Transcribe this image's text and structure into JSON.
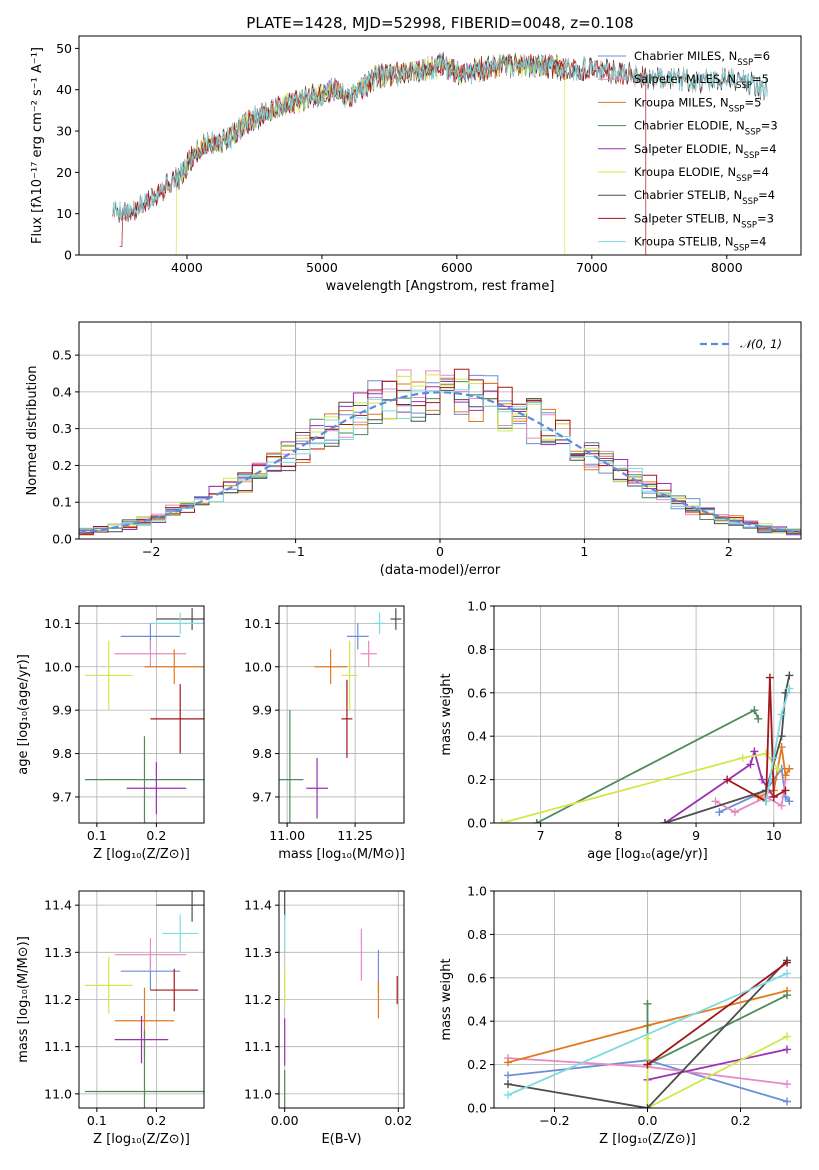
{
  "colors": {
    "Chabrier MILES": "#6a8fd8",
    "Salpeter MILES": "#e78ac3",
    "Kroupa MILES": "#e07a1f",
    "Chabrier ELODIE": "#4f8a5b",
    "Salpeter ELODIE": "#9b30b5",
    "Kroupa ELODIE": "#d2e84a",
    "Chabrier STELIB": "#4d4d4d",
    "Salpeter STELIB": "#a3161b",
    "Kroupa STELIB": "#7fdbe0"
  },
  "chart_data": [
    {
      "id": "spectrum",
      "type": "line",
      "title": "PLATE=1428, MJD=52998, FIBERID=0048, z=0.108",
      "xlabel": "wavelength [Angstrom, rest frame]",
      "ylabel": "Flux [fλ10⁻¹⁷ erg cm⁻² s⁻¹ A⁻¹]",
      "xlim": [
        3200,
        8550
      ],
      "ylim": [
        0,
        53
      ],
      "xticks": [
        4000,
        5000,
        6000,
        7000,
        8000
      ],
      "yticks": [
        0,
        10,
        20,
        30,
        40,
        50
      ],
      "grid": false,
      "legend_position": "top-right",
      "continuum_x": [
        3450,
        3600,
        3700,
        3850,
        3950,
        4050,
        4150,
        4300,
        4400,
        4500,
        4700,
        4900,
        5100,
        5200,
        5400,
        5600,
        5800,
        5900,
        6000,
        6200,
        6400,
        6600,
        6800,
        7000,
        7200,
        7400,
        7600,
        7800,
        8000,
        8150,
        8300
      ],
      "continuum_y": [
        11,
        10,
        13,
        17,
        19,
        24,
        27,
        28,
        31,
        33,
        36,
        38,
        40,
        38,
        43,
        44,
        45,
        46,
        44,
        45,
        46,
        46,
        45,
        45,
        44,
        43,
        43,
        42,
        43,
        42,
        40
      ],
      "series": [
        {
          "name": "Chabrier MILES",
          "nssp": "6",
          "x_range": [
            3450,
            8300
          ]
        },
        {
          "name": "Salpeter MILES",
          "nssp": "5",
          "x_range": [
            3450,
            8300
          ]
        },
        {
          "name": "Kroupa MILES",
          "nssp": "5",
          "x_range": [
            3450,
            8300
          ]
        },
        {
          "name": "Chabrier ELODIE",
          "nssp": "3",
          "x_range": [
            3920,
            6800
          ]
        },
        {
          "name": "Salpeter ELODIE",
          "nssp": "4",
          "x_range": [
            3920,
            6800
          ]
        },
        {
          "name": "Kroupa ELODIE",
          "nssp": "4",
          "x_range": [
            3920,
            6800
          ]
        },
        {
          "name": "Chabrier STELIB",
          "nssp": "4",
          "x_range": [
            3450,
            8300
          ]
        },
        {
          "name": "Salpeter STELIB",
          "nssp": "3",
          "x_range": [
            3500,
            7400
          ]
        },
        {
          "name": "Kroupa STELIB",
          "nssp": "4",
          "x_range": [
            3450,
            8300
          ]
        }
      ]
    },
    {
      "id": "residuals",
      "type": "histogram",
      "xlabel": "(data-model)/error",
      "ylabel": "Normed distribution",
      "xlim": [
        -2.5,
        2.5
      ],
      "ylim": [
        0,
        0.59
      ],
      "xticks": [
        -2,
        -1,
        0,
        1,
        2
      ],
      "yticks": [
        0.0,
        0.1,
        0.2,
        0.3,
        0.4,
        0.5
      ],
      "grid": true,
      "legend_position": "top-right",
      "reference_label": "𝒩(0, 1)",
      "reference_mean": 0,
      "reference_sigma": 1,
      "bin_width": 0.1
    },
    {
      "id": "age-vs-Z",
      "type": "errorbar",
      "xlabel": "Z [log₁₀(Z/Z⊙)]",
      "ylabel": "age  [log₁₀(age/yr)]",
      "xlim": [
        0.07,
        0.28
      ],
      "ylim": [
        9.64,
        10.14
      ],
      "xticks": [
        0.1,
        0.2
      ],
      "yticks": [
        9.7,
        9.8,
        9.9,
        10.0,
        10.1
      ],
      "grid": true,
      "points": [
        {
          "series": "Chabrier MILES",
          "x": 0.19,
          "y": 10.07,
          "xerr": 0.05,
          "yerr": 0.03
        },
        {
          "series": "Salpeter MILES",
          "x": 0.19,
          "y": 10.03,
          "xerr": 0.06,
          "yerr": 0.03
        },
        {
          "series": "Kroupa MILES",
          "x": 0.23,
          "y": 10.0,
          "xerr": 0.05,
          "yerr": 0.04
        },
        {
          "series": "Chabrier ELODIE",
          "x": 0.18,
          "y": 9.74,
          "xerr": 0.1,
          "yerr": 0.1
        },
        {
          "series": "Salpeter ELODIE",
          "x": 0.2,
          "y": 9.72,
          "xerr": 0.05,
          "yerr": 0.06
        },
        {
          "series": "Kroupa ELODIE",
          "x": 0.12,
          "y": 9.98,
          "xerr": 0.04,
          "yerr": 0.08
        },
        {
          "series": "Chabrier STELIB",
          "x": 0.26,
          "y": 10.11,
          "xerr": 0.06,
          "yerr": 0.025
        },
        {
          "series": "Salpeter STELIB",
          "x": 0.24,
          "y": 9.88,
          "xerr": 0.05,
          "yerr": 0.08
        },
        {
          "series": "Kroupa STELIB",
          "x": 0.24,
          "y": 10.1,
          "xerr": 0.05,
          "yerr": 0.025
        }
      ]
    },
    {
      "id": "age-vs-mass",
      "type": "errorbar",
      "xlabel": "mass [log₁₀(M/M⊙)]",
      "ylabel": "",
      "xlim": [
        10.97,
        11.43
      ],
      "ylim": [
        9.64,
        10.14
      ],
      "xticks": [
        11.0,
        11.25
      ],
      "yticks": [
        9.7,
        9.8,
        9.9,
        10.0,
        10.1
      ],
      "grid": true,
      "points": [
        {
          "series": "Chabrier MILES",
          "x": 11.26,
          "y": 10.07,
          "xerr": 0.04,
          "yerr": 0.03
        },
        {
          "series": "Salpeter MILES",
          "x": 11.3,
          "y": 10.03,
          "xerr": 0.03,
          "yerr": 0.03
        },
        {
          "series": "Kroupa MILES",
          "x": 11.16,
          "y": 10.0,
          "xerr": 0.06,
          "yerr": 0.04
        },
        {
          "series": "Chabrier ELODIE",
          "x": 11.01,
          "y": 9.74,
          "xerr": 0.05,
          "yerr": 0.16
        },
        {
          "series": "Salpeter ELODIE",
          "x": 11.11,
          "y": 9.72,
          "xerr": 0.04,
          "yerr": 0.07
        },
        {
          "series": "Kroupa ELODIE",
          "x": 11.23,
          "y": 9.98,
          "xerr": 0.03,
          "yerr": 0.08
        },
        {
          "series": "Chabrier STELIB",
          "x": 11.4,
          "y": 10.11,
          "xerr": 0.02,
          "yerr": 0.025
        },
        {
          "series": "Salpeter STELIB",
          "x": 11.22,
          "y": 9.88,
          "xerr": 0.02,
          "yerr": 0.09
        },
        {
          "series": "Kroupa STELIB",
          "x": 11.34,
          "y": 10.1,
          "xerr": 0.02,
          "yerr": 0.025
        }
      ]
    },
    {
      "id": "weight-vs-age",
      "type": "line",
      "xlabel": "age  [log₁₀(age/yr)]",
      "ylabel": "mass weight",
      "xlim": [
        6.4,
        10.35
      ],
      "ylim": [
        0,
        1.0
      ],
      "xticks": [
        7,
        8,
        9,
        10
      ],
      "yticks": [
        0.0,
        0.2,
        0.4,
        0.6,
        0.8,
        1.0
      ],
      "grid": true,
      "series": [
        {
          "name": "Chabrier MILES",
          "x": [
            9.3,
            9.9,
            10.0,
            10.1,
            10.15,
            10.2
          ],
          "y": [
            0.05,
            0.15,
            0.2,
            0.25,
            0.12,
            0.1
          ]
        },
        {
          "name": "Salpeter MILES",
          "x": [
            9.25,
            9.5,
            9.9,
            10.1,
            10.15
          ],
          "y": [
            0.1,
            0.05,
            0.12,
            0.08,
            0.2
          ]
        },
        {
          "name": "Kroupa MILES",
          "x": [
            9.8,
            10.0,
            10.1,
            10.15,
            10.2
          ],
          "y": [
            0.12,
            0.15,
            0.35,
            0.22,
            0.25
          ]
        },
        {
          "name": "Chabrier ELODIE",
          "x": [
            6.95,
            9.75,
            9.8
          ],
          "y": [
            0.0,
            0.52,
            0.48
          ]
        },
        {
          "name": "Salpeter ELODIE",
          "x": [
            8.6,
            9.7,
            9.75,
            9.85,
            10.0
          ],
          "y": [
            0.0,
            0.27,
            0.33,
            0.2,
            0.12
          ]
        },
        {
          "name": "Kroupa ELODIE",
          "x": [
            6.5,
            9.6,
            9.9,
            10.05
          ],
          "y": [
            0.0,
            0.3,
            0.32,
            0.25
          ]
        },
        {
          "name": "Chabrier STELIB",
          "x": [
            8.6,
            9.9,
            10.1,
            10.15,
            10.2
          ],
          "y": [
            0.0,
            0.15,
            0.4,
            0.6,
            0.68
          ]
        },
        {
          "name": "Salpeter STELIB",
          "x": [
            9.4,
            9.9,
            9.95,
            10.0,
            10.15
          ],
          "y": [
            0.2,
            0.1,
            0.67,
            0.12,
            0.15
          ]
        },
        {
          "name": "Kroupa STELIB",
          "x": [
            9.9,
            10.0,
            10.1,
            10.2
          ],
          "y": [
            0.1,
            0.3,
            0.5,
            0.62
          ]
        }
      ]
    },
    {
      "id": "mass-vs-Z",
      "type": "errorbar",
      "xlabel": "Z [log₁₀(Z/Z⊙)]",
      "ylabel": "mass [log₁₀(M/M⊙)]",
      "xlim": [
        0.07,
        0.28
      ],
      "ylim": [
        10.97,
        11.43
      ],
      "xticks": [
        0.1,
        0.2
      ],
      "yticks": [
        11.0,
        11.1,
        11.2,
        11.3,
        11.4
      ],
      "grid": true,
      "points": [
        {
          "series": "Chabrier MILES",
          "x": 0.19,
          "y": 11.26,
          "xerr": 0.05,
          "yerr": 0.04
        },
        {
          "series": "Salpeter MILES",
          "x": 0.19,
          "y": 11.295,
          "xerr": 0.06,
          "yerr": 0.035
        },
        {
          "series": "Kroupa MILES",
          "x": 0.18,
          "y": 11.155,
          "xerr": 0.05,
          "yerr": 0.07
        },
        {
          "series": "Chabrier ELODIE",
          "x": 0.18,
          "y": 11.005,
          "xerr": 0.1,
          "yerr": 0.13
        },
        {
          "series": "Salpeter ELODIE",
          "x": 0.175,
          "y": 11.115,
          "xerr": 0.045,
          "yerr": 0.05
        },
        {
          "series": "Kroupa ELODIE",
          "x": 0.12,
          "y": 11.23,
          "xerr": 0.04,
          "yerr": 0.06
        },
        {
          "series": "Chabrier STELIB",
          "x": 0.26,
          "y": 11.4,
          "xerr": 0.06,
          "yerr": 0.035
        },
        {
          "series": "Salpeter STELIB",
          "x": 0.23,
          "y": 11.22,
          "xerr": 0.04,
          "yerr": 0.045
        },
        {
          "series": "Kroupa STELIB",
          "x": 0.24,
          "y": 11.34,
          "xerr": 0.03,
          "yerr": 0.04
        }
      ]
    },
    {
      "id": "mass-vs-EBV",
      "type": "errorbar",
      "xlabel": "E(B-V)",
      "ylabel": "",
      "xlim": [
        -0.001,
        0.021
      ],
      "ylim": [
        10.97,
        11.43
      ],
      "xticks": [
        0.0,
        0.02
      ],
      "yticks": [
        11.0,
        11.1,
        11.2,
        11.3,
        11.4
      ],
      "grid": true,
      "points": [
        {
          "series": "Chabrier MILES",
          "x": 0.0165,
          "y": 11.26,
          "xerr": 0,
          "yerr": 0.045
        },
        {
          "series": "Salpeter MILES",
          "x": 0.0135,
          "y": 11.295,
          "xerr": 0,
          "yerr": 0.055
        },
        {
          "series": "Kroupa MILES",
          "x": 0.0165,
          "y": 11.2,
          "xerr": 0,
          "yerr": 0.04
        },
        {
          "series": "Chabrier ELODIE",
          "x": 0.0,
          "y": 11.0,
          "xerr": 0,
          "yerr": 0.05
        },
        {
          "series": "Salpeter ELODIE",
          "x": 0.0,
          "y": 11.11,
          "xerr": 0,
          "yerr": 0.05
        },
        {
          "series": "Kroupa ELODIE",
          "x": 0.0,
          "y": 11.23,
          "xerr": 0,
          "yerr": 0.04
        },
        {
          "series": "Chabrier STELIB",
          "x": 0.0,
          "y": 11.4,
          "xerr": 0,
          "yerr": 0.03
        },
        {
          "series": "Salpeter STELIB",
          "x": 0.0198,
          "y": 11.22,
          "xerr": 0,
          "yerr": 0.03
        },
        {
          "series": "Kroupa STELIB",
          "x": 0.0,
          "y": 11.34,
          "xerr": 0,
          "yerr": 0.04
        }
      ]
    },
    {
      "id": "weight-vs-Z",
      "type": "line",
      "xlabel": "Z [log₁₀(Z/Z⊙)]",
      "ylabel": "mass weight",
      "xlim": [
        -0.33,
        0.33
      ],
      "ylim": [
        0,
        1.0
      ],
      "xticks": [
        -0.2,
        0.0,
        0.2
      ],
      "yticks": [
        0.0,
        0.2,
        0.4,
        0.6,
        0.8,
        1.0
      ],
      "grid": true,
      "series": [
        {
          "name": "Chabrier MILES",
          "x": [
            -0.3,
            0.0,
            0.3
          ],
          "y": [
            0.15,
            0.22,
            0.03
          ]
        },
        {
          "name": "Salpeter MILES",
          "x": [
            -0.3,
            0.0,
            0.3
          ],
          "y": [
            0.23,
            0.19,
            0.11
          ]
        },
        {
          "name": "Kroupa MILES",
          "x": [
            -0.3,
            0.0,
            0.3
          ],
          "y": [
            0.21,
            0.38,
            0.54
          ]
        },
        {
          "name": "Chabrier ELODIE",
          "x": [
            0.0,
            0.0,
            0.3
          ],
          "y": [
            0.48,
            0.2,
            0.52
          ]
        },
        {
          "name": "Salpeter ELODIE",
          "x": [
            0.0,
            0.3
          ],
          "y": [
            0.13,
            0.27
          ]
        },
        {
          "name": "Kroupa ELODIE",
          "x": [
            0.0,
            0.0,
            0.3
          ],
          "y": [
            0.32,
            0.0,
            0.33
          ]
        },
        {
          "name": "Chabrier STELIB",
          "x": [
            -0.3,
            0.0,
            0.3
          ],
          "y": [
            0.11,
            0.0,
            0.68
          ]
        },
        {
          "name": "Salpeter STELIB",
          "x": [
            0.0,
            0.3
          ],
          "y": [
            0.2,
            0.67
          ]
        },
        {
          "name": "Kroupa STELIB",
          "x": [
            -0.3,
            0.3
          ],
          "y": [
            0.06,
            0.62
          ]
        }
      ]
    }
  ]
}
